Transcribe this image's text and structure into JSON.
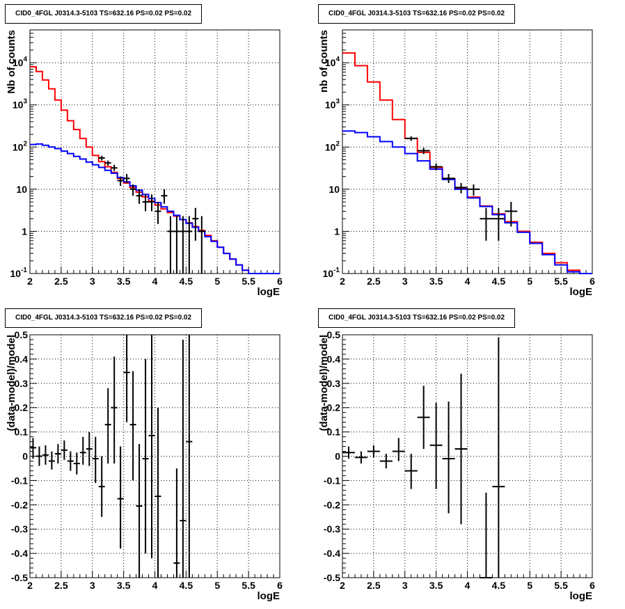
{
  "chart_data": [
    {
      "type": "line",
      "title": "CID0_4FGL J0314.3-5103 TS=632.16 PS=0.02 PS=0.02",
      "xlabel": "logE",
      "ylabel": "Nb of counts",
      "xlim": [
        2,
        6
      ],
      "ylim": [
        0.1,
        60000
      ],
      "yscale": "log",
      "grid": true,
      "x_ticks": [
        "2",
        "2.5",
        "3",
        "3.5",
        "4",
        "4.5",
        "5",
        "5.5",
        "6"
      ],
      "y_ticks": [
        "10^-1",
        "1",
        "10",
        "10^2",
        "10^3",
        "10^4"
      ],
      "bin_edges": [
        2.0,
        2.1,
        2.2,
        2.3,
        2.4,
        2.5,
        2.6,
        2.7,
        2.8,
        2.9,
        3.0,
        3.1,
        3.2,
        3.3,
        3.4,
        3.5,
        3.6,
        3.7,
        3.8,
        3.9,
        4.0,
        4.1,
        4.2,
        4.3,
        4.4,
        4.5,
        4.6,
        4.7,
        4.8,
        4.9,
        5.0,
        5.1,
        5.2,
        5.3,
        5.4,
        5.5,
        5.6,
        5.7,
        5.8,
        5.9,
        6.0
      ],
      "series": [
        {
          "color": "#ff0000",
          "style": "step",
          "values": [
            8000,
            6200,
            3900,
            2400,
            1300,
            750,
            420,
            260,
            160,
            100,
            63,
            45,
            34,
            25,
            18,
            14,
            11,
            8.5,
            6.6,
            5.2,
            4.2,
            3.4,
            2.8,
            2.3,
            1.9,
            1.6,
            1.3,
            1.05,
            0.8,
            0.6,
            0.42,
            0.3,
            0.22,
            0.16,
            0.12,
            0.1,
            0.1,
            0.1,
            0.1,
            0.1
          ]
        },
        {
          "color": "#0000ff",
          "style": "step",
          "values": [
            115,
            118,
            110,
            100,
            92,
            80,
            70,
            60,
            52,
            44,
            38,
            33,
            28,
            24,
            19,
            15,
            12,
            9.5,
            7.5,
            6,
            4.8,
            3.8,
            3.0,
            2.4,
            1.9,
            1.55,
            1.25,
            1.0,
            0.75,
            0.58,
            0.42,
            0.3,
            0.22,
            0.16,
            0.12,
            0.1,
            0.1,
            0.1,
            0.1,
            0.1
          ]
        },
        {
          "color": "#000000",
          "style": "errorbar",
          "points": [
            {
              "x": 3.15,
              "y": 55,
              "lo": 48,
              "hi": 62
            },
            {
              "x": 3.25,
              "y": 42,
              "lo": 36,
              "hi": 48
            },
            {
              "x": 3.35,
              "y": 32,
              "lo": 27,
              "hi": 38
            },
            {
              "x": 3.45,
              "y": 16,
              "lo": 12,
              "hi": 20
            },
            {
              "x": 3.55,
              "y": 18,
              "lo": 14,
              "hi": 23
            },
            {
              "x": 3.65,
              "y": 10,
              "lo": 7,
              "hi": 13
            },
            {
              "x": 3.75,
              "y": 7,
              "lo": 4.5,
              "hi": 10
            },
            {
              "x": 3.85,
              "y": 5,
              "lo": 3,
              "hi": 7.5
            },
            {
              "x": 3.95,
              "y": 5,
              "lo": 3,
              "hi": 7.5
            },
            {
              "x": 4.05,
              "y": 3,
              "lo": 1.5,
              "hi": 5
            },
            {
              "x": 4.15,
              "y": 7,
              "lo": 4.5,
              "hi": 10
            },
            {
              "x": 4.25,
              "y": 1,
              "lo": 0.1,
              "hi": 2.3
            },
            {
              "x": 4.35,
              "y": 1,
              "lo": 0.1,
              "hi": 2.3
            },
            {
              "x": 4.45,
              "y": 1,
              "lo": 0.1,
              "hi": 2.3
            },
            {
              "x": 4.55,
              "y": 1,
              "lo": 0.1,
              "hi": 2.3
            },
            {
              "x": 4.65,
              "y": 2,
              "lo": 0.6,
              "hi": 3.6
            },
            {
              "x": 4.75,
              "y": 1,
              "lo": 0.1,
              "hi": 2.3
            }
          ]
        }
      ]
    },
    {
      "type": "line",
      "title": "CID0_4FGL J0314.3-5103 TS=632.16 PS=0.02 PS=0.02",
      "xlabel": "logE",
      "ylabel": "nb of counts",
      "xlim": [
        2,
        6
      ],
      "ylim": [
        0.1,
        60000
      ],
      "yscale": "log",
      "grid": true,
      "x_ticks": [
        "2",
        "2.5",
        "3",
        "3.5",
        "4",
        "4.5",
        "5",
        "5.5",
        "6"
      ],
      "y_ticks": [
        "10^-1",
        "1",
        "10",
        "10^2",
        "10^3",
        "10^4"
      ],
      "bin_edges": [
        2.0,
        2.2,
        2.4,
        2.6,
        2.8,
        3.0,
        3.2,
        3.4,
        3.6,
        3.8,
        4.0,
        4.2,
        4.4,
        4.6,
        4.8,
        5.0,
        5.2,
        5.4,
        5.6,
        5.8,
        6.0
      ],
      "series": [
        {
          "color": "#ff0000",
          "style": "step",
          "values": [
            17000,
            8500,
            3500,
            1300,
            450,
            160,
            75,
            33,
            18,
            10.5,
            6.5,
            4.0,
            2.6,
            1.7,
            1.0,
            0.55,
            0.3,
            0.18,
            0.12,
            0.1
          ]
        },
        {
          "color": "#0000ff",
          "style": "step",
          "values": [
            240,
            220,
            175,
            135,
            100,
            70,
            47,
            30,
            17,
            10,
            6.2,
            3.9,
            2.5,
            1.6,
            0.95,
            0.52,
            0.28,
            0.16,
            0.11,
            0.1
          ]
        },
        {
          "color": "#000000",
          "style": "errorbar",
          "points": [
            {
              "x": 3.1,
              "y": 160,
              "lo": 140,
              "hi": 180
            },
            {
              "x": 3.3,
              "y": 82,
              "lo": 68,
              "hi": 96
            },
            {
              "x": 3.5,
              "y": 34,
              "lo": 28,
              "hi": 41
            },
            {
              "x": 3.7,
              "y": 18,
              "lo": 14,
              "hi": 23
            },
            {
              "x": 3.9,
              "y": 11,
              "lo": 8,
              "hi": 14
            },
            {
              "x": 4.1,
              "y": 10,
              "lo": 7,
              "hi": 13
            },
            {
              "x": 4.3,
              "y": 2,
              "lo": 0.6,
              "hi": 3.6
            },
            {
              "x": 4.5,
              "y": 2,
              "lo": 0.6,
              "hi": 3.6
            },
            {
              "x": 4.7,
              "y": 3,
              "lo": 1.3,
              "hi": 5
            }
          ]
        }
      ]
    },
    {
      "type": "scatter",
      "title": "CID0_4FGL J0314.3-5103 TS=632.16 PS=0.02 PS=0.02",
      "xlabel": "logE",
      "ylabel": "(data-model)/model",
      "xlim": [
        2,
        6
      ],
      "ylim": [
        -0.5,
        0.5
      ],
      "grid": true,
      "x_ticks": [
        "2",
        "2.5",
        "3",
        "3.5",
        "4",
        "4.5",
        "5",
        "5.5",
        "6"
      ],
      "y_ticks": [
        "-0.5",
        "-0.4",
        "-0.3",
        "-0.2",
        "-0.1",
        "0",
        "0.1",
        "0.2",
        "0.3",
        "0.4",
        "0.5"
      ],
      "series": [
        {
          "color": "#000000",
          "style": "errorbar",
          "xerr": 0.05,
          "points": [
            {
              "x": 2.05,
              "y": 0.035,
              "lo": -0.01,
              "hi": 0.075
            },
            {
              "x": 2.15,
              "y": 0.0,
              "lo": -0.04,
              "hi": 0.04
            },
            {
              "x": 2.25,
              "y": 0.005,
              "lo": -0.035,
              "hi": 0.045
            },
            {
              "x": 2.35,
              "y": -0.02,
              "lo": -0.055,
              "hi": 0.02
            },
            {
              "x": 2.45,
              "y": 0.01,
              "lo": -0.03,
              "hi": 0.05
            },
            {
              "x": 2.55,
              "y": 0.025,
              "lo": -0.015,
              "hi": 0.065
            },
            {
              "x": 2.65,
              "y": -0.02,
              "lo": -0.06,
              "hi": 0.02
            },
            {
              "x": 2.75,
              "y": -0.03,
              "lo": -0.075,
              "hi": 0.015
            },
            {
              "x": 2.85,
              "y": 0.015,
              "lo": -0.035,
              "hi": 0.08
            },
            {
              "x": 2.95,
              "y": 0.03,
              "lo": -0.04,
              "hi": 0.1
            },
            {
              "x": 3.05,
              "y": -0.01,
              "lo": -0.11,
              "hi": 0.08
            },
            {
              "x": 3.15,
              "y": -0.125,
              "lo": -0.25,
              "hi": 0.0
            },
            {
              "x": 3.25,
              "y": 0.13,
              "lo": -0.03,
              "hi": 0.28
            },
            {
              "x": 3.35,
              "y": 0.2,
              "lo": -0.03,
              "hi": 0.41
            },
            {
              "x": 3.45,
              "y": -0.175,
              "lo": -0.38,
              "hi": 0.04
            },
            {
              "x": 3.55,
              "y": 0.345,
              "lo": 0.14,
              "hi": 0.5
            },
            {
              "x": 3.65,
              "y": 0.13,
              "lo": -0.1,
              "hi": 0.35
            },
            {
              "x": 3.75,
              "y": -0.205,
              "lo": -0.5,
              "hi": 0.05
            },
            {
              "x": 3.85,
              "y": -0.01,
              "lo": -0.4,
              "hi": 0.4
            },
            {
              "x": 3.95,
              "y": 0.085,
              "lo": -0.42,
              "hi": 0.5
            },
            {
              "x": 4.05,
              "y": -0.165,
              "lo": -0.5,
              "hi": 0.2
            },
            {
              "x": 4.35,
              "y": -0.44,
              "lo": -0.5,
              "hi": -0.05
            },
            {
              "x": 4.45,
              "y": -0.265,
              "lo": -0.5,
              "hi": 0.48
            },
            {
              "x": 4.55,
              "y": 0.06,
              "lo": -0.5,
              "hi": 0.5
            }
          ]
        }
      ]
    },
    {
      "type": "scatter",
      "title": "CID0_4FGL J0314.3-5103 TS=632.16 PS=0.02 PS=0.02",
      "xlabel": "logE",
      "ylabel": "(data-model)/model",
      "xlim": [
        2,
        6
      ],
      "ylim": [
        -0.5,
        0.5
      ],
      "grid": true,
      "x_ticks": [
        "2",
        "2.5",
        "3",
        "3.5",
        "4",
        "4.5",
        "5",
        "5.5",
        "6"
      ],
      "y_ticks": [
        "-0.5",
        "-0.4",
        "-0.3",
        "-0.2",
        "-0.1",
        "0",
        "0.1",
        "0.2",
        "0.3",
        "0.4",
        "0.5"
      ],
      "series": [
        {
          "color": "#000000",
          "style": "errorbar",
          "xerr": 0.1,
          "points": [
            {
              "x": 2.1,
              "y": 0.015,
              "lo": -0.01,
              "hi": 0.04
            },
            {
              "x": 2.3,
              "y": -0.005,
              "lo": -0.03,
              "hi": 0.02
            },
            {
              "x": 2.5,
              "y": 0.02,
              "lo": -0.005,
              "hi": 0.045
            },
            {
              "x": 2.7,
              "y": -0.02,
              "lo": -0.05,
              "hi": 0.01
            },
            {
              "x": 2.9,
              "y": 0.02,
              "lo": -0.02,
              "hi": 0.075
            },
            {
              "x": 3.1,
              "y": -0.06,
              "lo": -0.135,
              "hi": 0.01
            },
            {
              "x": 3.3,
              "y": 0.16,
              "lo": 0.03,
              "hi": 0.29
            },
            {
              "x": 3.5,
              "y": 0.045,
              "lo": -0.135,
              "hi": 0.22
            },
            {
              "x": 3.7,
              "y": -0.01,
              "lo": -0.235,
              "hi": 0.225
            },
            {
              "x": 3.9,
              "y": 0.03,
              "lo": -0.28,
              "hi": 0.34
            },
            {
              "x": 4.3,
              "y": -0.5,
              "lo": -0.5,
              "hi": -0.15
            },
            {
              "x": 4.5,
              "y": -0.125,
              "lo": -0.5,
              "hi": 0.49
            }
          ]
        }
      ]
    }
  ]
}
